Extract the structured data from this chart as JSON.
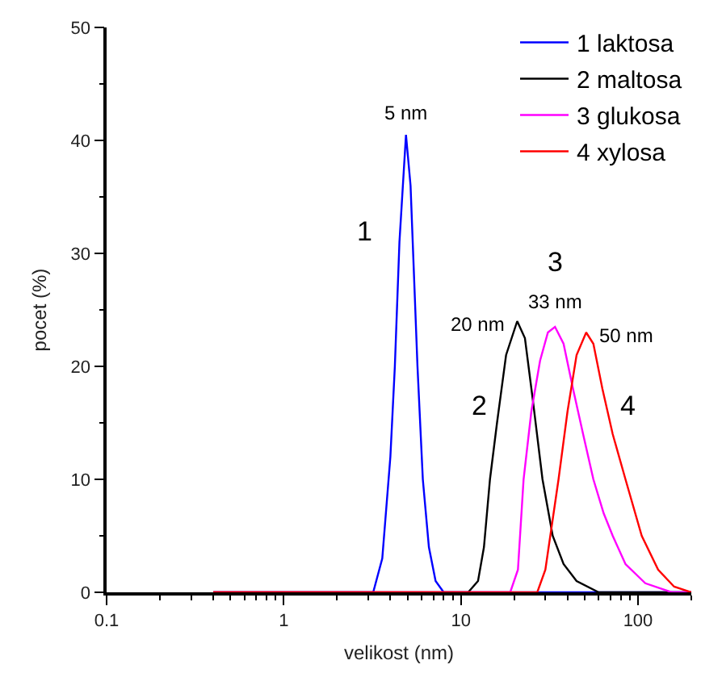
{
  "chart_data": {
    "type": "line",
    "xlabel": "velikost (nm)",
    "ylabel": "pocet (%)",
    "log": "x",
    "xlim": [
      0.1,
      200
    ],
    "ylim": [
      0,
      50
    ],
    "xticks": [
      0.1,
      {
        "value": 0.2,
        "label": null
      },
      {
        "value": 0.3,
        "label": null
      },
      {
        "value": 0.4,
        "label": null
      },
      {
        "value": 0.5,
        "label": null
      },
      {
        "value": 0.6,
        "label": null
      },
      {
        "value": 0.7,
        "label": null
      },
      {
        "value": 0.8,
        "label": null
      },
      {
        "value": 0.9,
        "label": null
      },
      1,
      {
        "value": 2,
        "label": null
      },
      {
        "value": 3,
        "label": null
      },
      {
        "value": 4,
        "label": null
      },
      {
        "value": 5,
        "label": null
      },
      {
        "value": 6,
        "label": null
      },
      {
        "value": 7,
        "label": null
      },
      {
        "value": 8,
        "label": null
      },
      {
        "value": 9,
        "label": null
      },
      10,
      {
        "value": 20,
        "label": null
      },
      {
        "value": 30,
        "label": null
      },
      {
        "value": 40,
        "label": null
      },
      {
        "value": 50,
        "label": null
      },
      {
        "value": 60,
        "label": null
      },
      {
        "value": 70,
        "label": null
      },
      {
        "value": 80,
        "label": null
      },
      {
        "value": 90,
        "label": null
      },
      100,
      {
        "value": 200,
        "label": null
      }
    ],
    "yticks": [
      0,
      {
        "value": 5,
        "label": null
      },
      10,
      {
        "value": 15,
        "label": null
      },
      20,
      {
        "value": 25,
        "label": null
      },
      30,
      {
        "value": 35,
        "label": null
      },
      40,
      {
        "value": 45,
        "label": null
      },
      50
    ],
    "legend": "top right",
    "marker": "none",
    "line_style": "solid",
    "series": [
      {
        "name": "1 laktosa",
        "color": "#0000ff",
        "x": [
          0.4,
          3.2,
          3.6,
          4.0,
          4.24,
          4.5,
          4.9,
          5.2,
          5.69,
          6.1,
          6.6,
          7.2,
          8,
          200
        ],
        "values": [
          0,
          0,
          3,
          12,
          20,
          31,
          40.5,
          36,
          20,
          10,
          4,
          1,
          0,
          0
        ]
      },
      {
        "name": "2 maltosa",
        "color": "#000000",
        "x": [
          0.4,
          11,
          12.5,
          13.5,
          14.6,
          16,
          18,
          20.8,
          23,
          25.5,
          28.9,
          33,
          38,
          45,
          60,
          200
        ],
        "values": [
          0,
          0,
          1,
          4,
          10,
          15,
          21,
          24,
          22.5,
          17,
          10,
          5,
          2.5,
          1,
          0,
          0
        ]
      },
      {
        "name": "3 glukosa",
        "color": "#ff00ff",
        "x": [
          0.4,
          19,
          21,
          22.6,
          25,
          28,
          31,
          34,
          38,
          43,
          49,
          56,
          64,
          72,
          85,
          110,
          155,
          200
        ],
        "values": [
          0,
          0,
          2,
          10,
          16,
          20.5,
          23,
          23.5,
          22,
          18,
          14,
          10,
          7,
          5,
          2.5,
          0.8,
          0,
          0
        ]
      },
      {
        "name": "4 xylosa",
        "color": "#ff0000",
        "x": [
          0.4,
          27,
          30,
          35.6,
          40,
          45,
          51,
          56,
          63,
          72,
          85,
          105,
          130,
          160,
          200
        ],
        "values": [
          0,
          0,
          2,
          10,
          16,
          21,
          23,
          22,
          18,
          14,
          10,
          5,
          2,
          0.5,
          0
        ]
      }
    ],
    "annotations": [
      "5 nm",
      "20 nm",
      "33 nm",
      "50 nm",
      "1",
      "2",
      "3",
      "4"
    ]
  }
}
